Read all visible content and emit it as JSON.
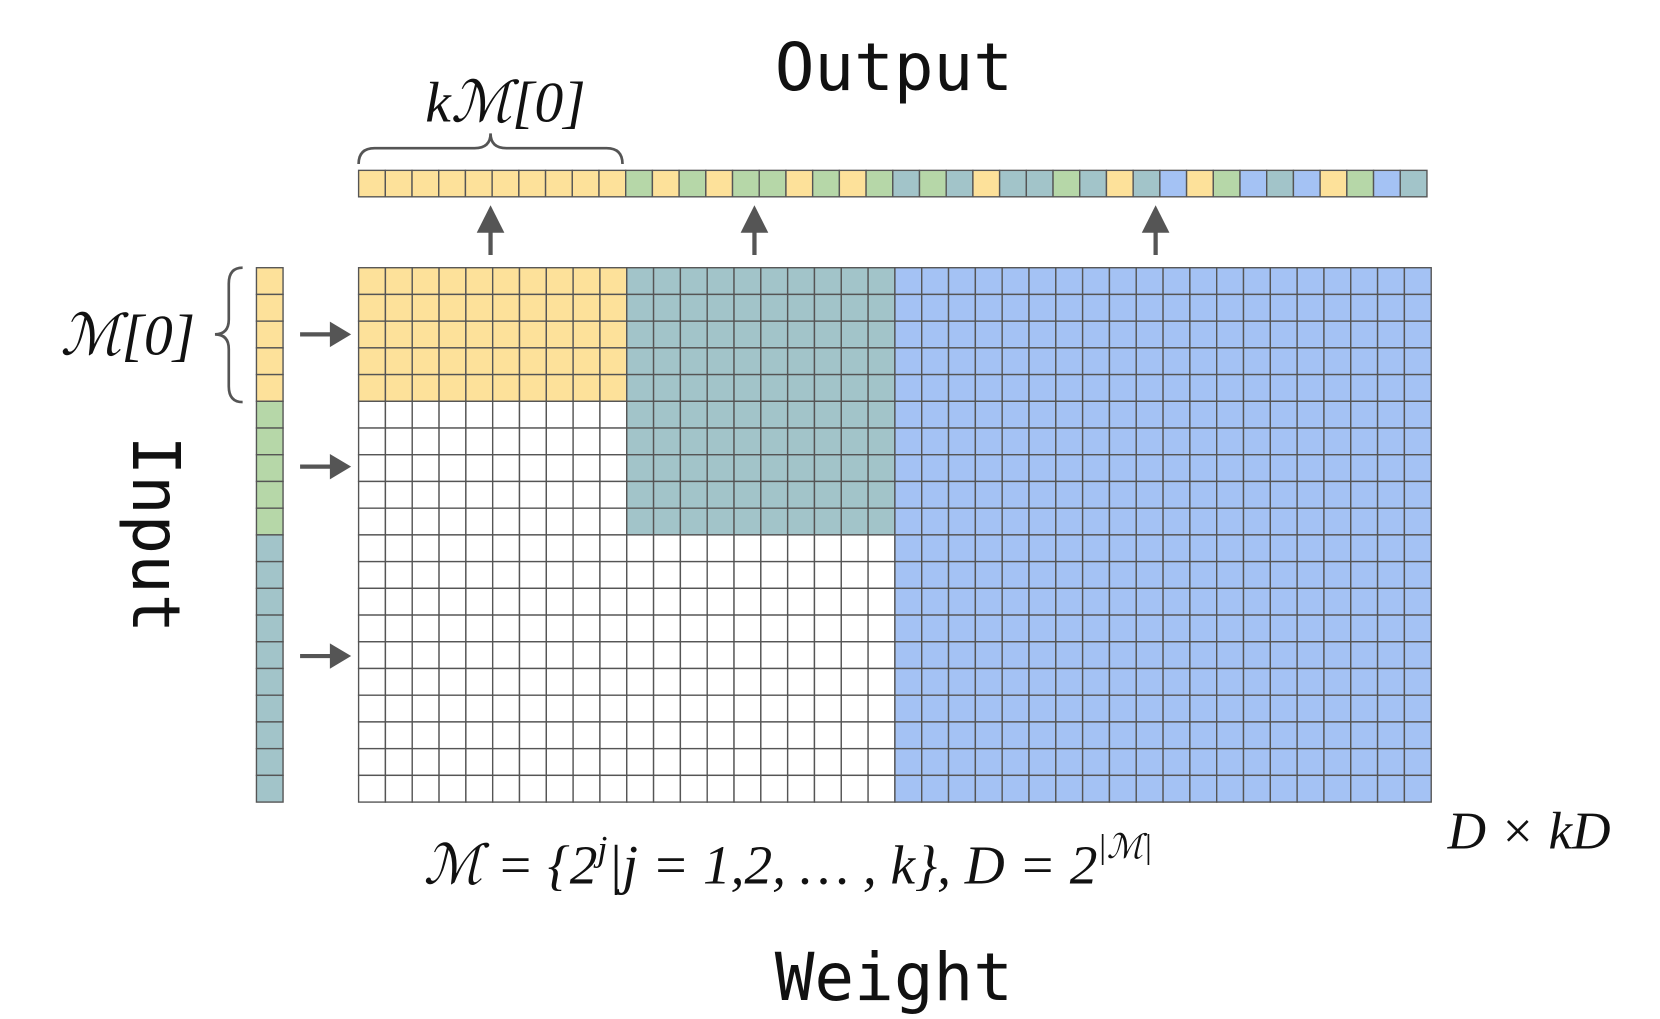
{
  "output_label": "Output",
  "weight_label": "Weight",
  "input_label": "Input",
  "top_brace_label": "kℳ[0]",
  "left_brace_label": "ℳ[0]",
  "size_label": "D × kD",
  "formula": {
    "base": "ℳ  = {2",
    "exp1": "j",
    "rest": "|j = 1,2, … , k}, D = 2",
    "exp2": "|ℳ|"
  }
}
